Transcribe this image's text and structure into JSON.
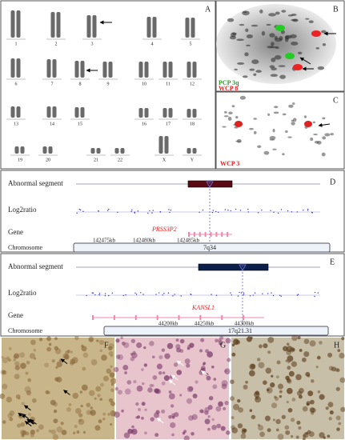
{
  "panel_labels": [
    "A",
    "B",
    "C",
    "D",
    "E",
    "F",
    "G",
    "H"
  ],
  "karyotype": {
    "chromosomes": [
      "1",
      "2",
      "3",
      "4",
      "5",
      "6",
      "7",
      "8",
      "9",
      "10",
      "11",
      "12",
      "13",
      "14",
      "15",
      "16",
      "17",
      "18",
      "19",
      "20",
      "21",
      "22",
      "X",
      "Y"
    ]
  },
  "fish": {
    "b_probes": [
      "PCP 3q",
      "WCP 8"
    ],
    "c_probe": "WCP 3"
  },
  "tracks": [
    {
      "rows": [
        "Abnormal segment",
        "Log2ratio",
        "Gene",
        "Chromosome"
      ],
      "gene": "PRSS3P2",
      "positions": [
        "142475kb",
        "142480kb",
        "142485kb"
      ],
      "band": "7q34"
    },
    {
      "rows": [
        "Abnormal segment",
        "Log2ratio",
        "Gene",
        "Chromosome"
      ],
      "gene": "KANSL1",
      "positions": [
        "44200kb",
        "44250kb",
        "44300kb"
      ],
      "band": "17q21.31"
    }
  ]
}
